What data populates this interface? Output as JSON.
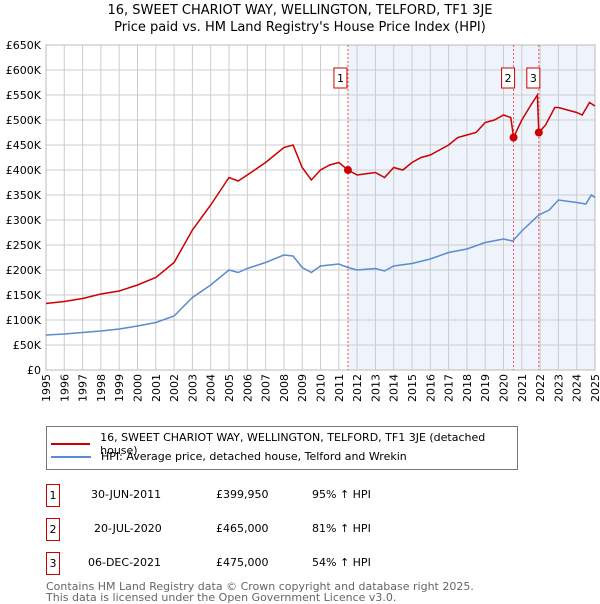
{
  "chart_data": {
    "type": "line",
    "title": "16, SWEET CHARIOT WAY, WELLINGTON, TELFORD, TF1 3JE",
    "subtitle": "Price paid vs. HM Land Registry's House Price Index (HPI)",
    "ylim": [
      0,
      650000
    ],
    "xlim": [
      1995,
      2025
    ],
    "y_ticks": [
      {
        "v": 0,
        "l": "£0"
      },
      {
        "v": 50000,
        "l": "£50K"
      },
      {
        "v": 100000,
        "l": "£100K"
      },
      {
        "v": 150000,
        "l": "£150K"
      },
      {
        "v": 200000,
        "l": "£200K"
      },
      {
        "v": 250000,
        "l": "£250K"
      },
      {
        "v": 300000,
        "l": "£300K"
      },
      {
        "v": 350000,
        "l": "£350K"
      },
      {
        "v": 400000,
        "l": "£400K"
      },
      {
        "v": 450000,
        "l": "£450K"
      },
      {
        "v": 500000,
        "l": "£500K"
      },
      {
        "v": 550000,
        "l": "£550K"
      },
      {
        "v": 600000,
        "l": "£600K"
      },
      {
        "v": 650000,
        "l": "£650K"
      }
    ],
    "x_ticks": [
      "1995",
      "1996",
      "1997",
      "1998",
      "1999",
      "2000",
      "2001",
      "2002",
      "2003",
      "2004",
      "2005",
      "2006",
      "2007",
      "2008",
      "2009",
      "2010",
      "2011",
      "2012",
      "2013",
      "2014",
      "2015",
      "2016",
      "2017",
      "2018",
      "2019",
      "2020",
      "2021",
      "2022",
      "2023",
      "2024",
      "2025"
    ],
    "shade_from": 2011.5,
    "series": [
      {
        "name": "16, SWEET CHARIOT WAY, WELLINGTON, TELFORD, TF1 3JE (detached house)",
        "color": "#cc0000",
        "x": [
          1995,
          1996,
          1997,
          1998,
          1999,
          2000,
          2001,
          2002,
          2003,
          2004,
          2005,
          2005.5,
          2006,
          2007,
          2007.5,
          2008,
          2008.5,
          2009,
          2009.5,
          2010,
          2010.5,
          2011,
          2011.5,
          2012,
          2013,
          2013.5,
          2014,
          2014.5,
          2015,
          2015.5,
          2016,
          2016.5,
          2017,
          2017.5,
          2018,
          2018.5,
          2019,
          2019.5,
          2020,
          2020.4,
          2020.55,
          2021,
          2021.5,
          2021.85,
          2021.93,
          2022.3,
          2022.8,
          2023,
          2023.5,
          2024,
          2024.3,
          2024.7,
          2025
        ],
        "y": [
          133000,
          137000,
          143000,
          152000,
          158000,
          170000,
          185000,
          215000,
          280000,
          330000,
          385000,
          378000,
          390000,
          415000,
          430000,
          445000,
          450000,
          405000,
          380000,
          400000,
          410000,
          415000,
          400000,
          390000,
          395000,
          385000,
          405000,
          400000,
          415000,
          425000,
          430000,
          440000,
          450000,
          465000,
          470000,
          475000,
          495000,
          500000,
          510000,
          505000,
          465000,
          500000,
          530000,
          550000,
          475000,
          490000,
          525000,
          525000,
          520000,
          515000,
          510000,
          535000,
          528000
        ]
      },
      {
        "name": "HPI: Average price, detached house, Telford and Wrekin",
        "color": "#5b8bd0",
        "x": [
          1995,
          1996,
          1997,
          1998,
          1999,
          2000,
          2001,
          2002,
          2003,
          2004,
          2005,
          2005.5,
          2006,
          2007,
          2008,
          2008.5,
          2009,
          2009.5,
          2010,
          2011,
          2011.5,
          2012,
          2013,
          2013.5,
          2014,
          2015,
          2016,
          2017,
          2018,
          2019,
          2020,
          2020.5,
          2021,
          2021.93,
          2022.5,
          2023,
          2024,
          2024.5,
          2024.8,
          2025
        ],
        "y": [
          70000,
          72000,
          75000,
          78000,
          82000,
          88000,
          95000,
          108000,
          145000,
          170000,
          200000,
          195000,
          203000,
          215000,
          230000,
          228000,
          205000,
          195000,
          208000,
          212000,
          205000,
          200000,
          203000,
          198000,
          208000,
          213000,
          222000,
          235000,
          242000,
          255000,
          262000,
          258000,
          278000,
          310000,
          320000,
          340000,
          335000,
          332000,
          350000,
          345000
        ]
      }
    ],
    "sales": [
      {
        "label": "1",
        "x": 2011.5,
        "price": 399950,
        "date": "30-JUN-2011",
        "price_text": "£399,950",
        "hpi": "95% ↑ HPI"
      },
      {
        "label": "2",
        "x": 2020.55,
        "price": 465000,
        "date": "20-JUL-2020",
        "price_text": "£465,000",
        "hpi": "81% ↑ HPI"
      },
      {
        "label": "3",
        "x": 2021.93,
        "price": 475000,
        "date": "06-DEC-2021",
        "price_text": "£475,000",
        "hpi": "54% ↑ HPI"
      }
    ]
  },
  "footer": [
    "Contains HM Land Registry data © Crown copyright and database right 2025.",
    "This data is licensed under the Open Government Licence v3.0."
  ]
}
